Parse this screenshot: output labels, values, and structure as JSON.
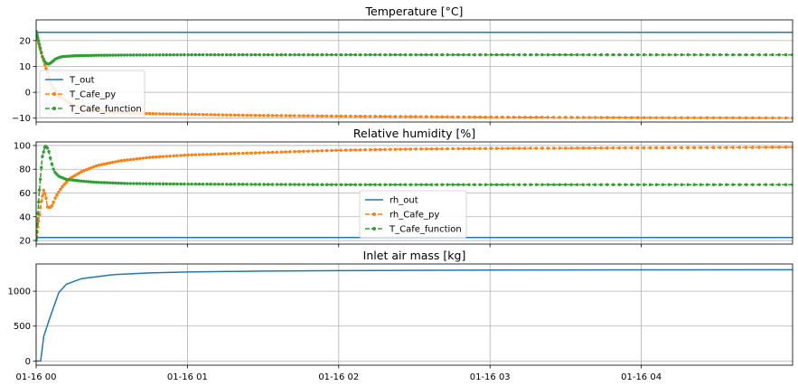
{
  "chart_data": [
    {
      "type": "line",
      "title": "Temperature [°C]",
      "xlabel": "",
      "ylabel": "",
      "xlim": [
        "2021-01-16 00:00",
        "2021-01-16 05:00"
      ],
      "ylim": [
        -11.5,
        28
      ],
      "yticks": [
        -10,
        0,
        10,
        20
      ],
      "grid": true,
      "legend": "left",
      "series": [
        {
          "name": "T_out",
          "color": "#1f77b4",
          "style": "solid",
          "points": [
            [
              0,
              23.2
            ],
            [
              5,
              23.2
            ]
          ]
        },
        {
          "name": "T_Cafe_py",
          "color": "#ff7f0e",
          "style": "dashed-marker",
          "points": [
            [
              0,
              23
            ],
            [
              0.02,
              18
            ],
            [
              0.05,
              12
            ],
            [
              0.1,
              3
            ],
            [
              0.15,
              -1.5
            ],
            [
              0.2,
              -3.5
            ],
            [
              0.25,
              -5
            ],
            [
              0.3,
              -6.2
            ],
            [
              0.4,
              -7
            ],
            [
              0.5,
              -7.6
            ],
            [
              0.6,
              -8
            ],
            [
              0.8,
              -8.3
            ],
            [
              1,
              -8.5
            ],
            [
              1.4,
              -8.9
            ],
            [
              2,
              -9.2
            ],
            [
              2.5,
              -9.4
            ],
            [
              3,
              -9.6
            ],
            [
              4,
              -9.8
            ],
            [
              5,
              -9.9
            ]
          ]
        },
        {
          "name": "T_Cafe_function",
          "color": "#2ca02c",
          "style": "dashed-marker",
          "points": [
            [
              0,
              23.5
            ],
            [
              0.02,
              19
            ],
            [
              0.04,
              14
            ],
            [
              0.06,
              11.5
            ],
            [
              0.08,
              10.8
            ],
            [
              0.1,
              11.5
            ],
            [
              0.13,
              13
            ],
            [
              0.17,
              13.8
            ],
            [
              0.25,
              14.1
            ],
            [
              0.4,
              14.3
            ],
            [
              0.6,
              14.4
            ],
            [
              1,
              14.5
            ],
            [
              2,
              14.5
            ],
            [
              3,
              14.5
            ],
            [
              4,
              14.5
            ],
            [
              5,
              14.5
            ]
          ]
        }
      ]
    },
    {
      "type": "line",
      "title": "Relative humidity [%]",
      "xlabel": "",
      "ylabel": "",
      "xlim": [
        "2021-01-16 00:00",
        "2021-01-16 05:00"
      ],
      "ylim": [
        17,
        103
      ],
      "yticks": [
        20,
        40,
        60,
        80,
        100
      ],
      "grid": true,
      "legend": "lower center",
      "series": [
        {
          "name": "rh_out",
          "color": "#1f77b4",
          "style": "solid",
          "points": [
            [
              0,
              22.5
            ],
            [
              5,
              22.5
            ]
          ]
        },
        {
          "name": "rh_Cafe_py",
          "color": "#ff7f0e",
          "style": "dashed-marker",
          "points": [
            [
              0,
              20
            ],
            [
              0.015,
              35
            ],
            [
              0.03,
              50
            ],
            [
              0.05,
              63
            ],
            [
              0.065,
              56
            ],
            [
              0.075,
              48
            ],
            [
              0.1,
              48
            ],
            [
              0.13,
              57
            ],
            [
              0.17,
              65
            ],
            [
              0.22,
              72
            ],
            [
              0.3,
              78
            ],
            [
              0.4,
              83
            ],
            [
              0.55,
              87
            ],
            [
              0.75,
              90
            ],
            [
              1,
              92
            ],
            [
              1.5,
              94
            ],
            [
              2,
              96
            ],
            [
              2.5,
              97
            ],
            [
              3,
              97.5
            ],
            [
              4,
              98
            ],
            [
              5,
              98.5
            ]
          ]
        },
        {
          "name": "T_Cafe_function",
          "color": "#2ca02c",
          "style": "dashed-marker",
          "points": [
            [
              0,
              20
            ],
            [
              0.02,
              60
            ],
            [
              0.04,
              90
            ],
            [
              0.06,
              100
            ],
            [
              0.08,
              97
            ],
            [
              0.1,
              86
            ],
            [
              0.12,
              78
            ],
            [
              0.15,
              74
            ],
            [
              0.2,
              71.5
            ],
            [
              0.3,
              70
            ],
            [
              0.4,
              69
            ],
            [
              0.6,
              68
            ],
            [
              1,
              67.5
            ],
            [
              2,
              67
            ],
            [
              3,
              67
            ],
            [
              4,
              67
            ],
            [
              5,
              67
            ]
          ]
        }
      ]
    },
    {
      "type": "line",
      "title": "Inlet air mass [kg]",
      "xlabel": "",
      "ylabel": "",
      "xlim": [
        "2021-01-16 00:00",
        "2021-01-16 05:00"
      ],
      "ylim": [
        -60,
        1390
      ],
      "yticks": [
        0,
        500,
        1000
      ],
      "xticks": [
        "01-16 00",
        "01-16 01",
        "01-16 02",
        "01-16 03",
        "01-16 04"
      ],
      "grid": true,
      "series": [
        {
          "name": "",
          "color": "#1f77b4",
          "style": "solid",
          "points": [
            [
              0,
              0
            ],
            [
              0.03,
              0
            ],
            [
              0.05,
              350
            ],
            [
              0.08,
              550
            ],
            [
              0.12,
              800
            ],
            [
              0.15,
              980
            ],
            [
              0.2,
              1100
            ],
            [
              0.3,
              1180
            ],
            [
              0.5,
              1235
            ],
            [
              0.75,
              1262
            ],
            [
              1,
              1275
            ],
            [
              1.5,
              1288
            ],
            [
              2,
              1295
            ],
            [
              3,
              1302
            ],
            [
              4,
              1306
            ],
            [
              5,
              1308
            ]
          ]
        }
      ]
    }
  ]
}
